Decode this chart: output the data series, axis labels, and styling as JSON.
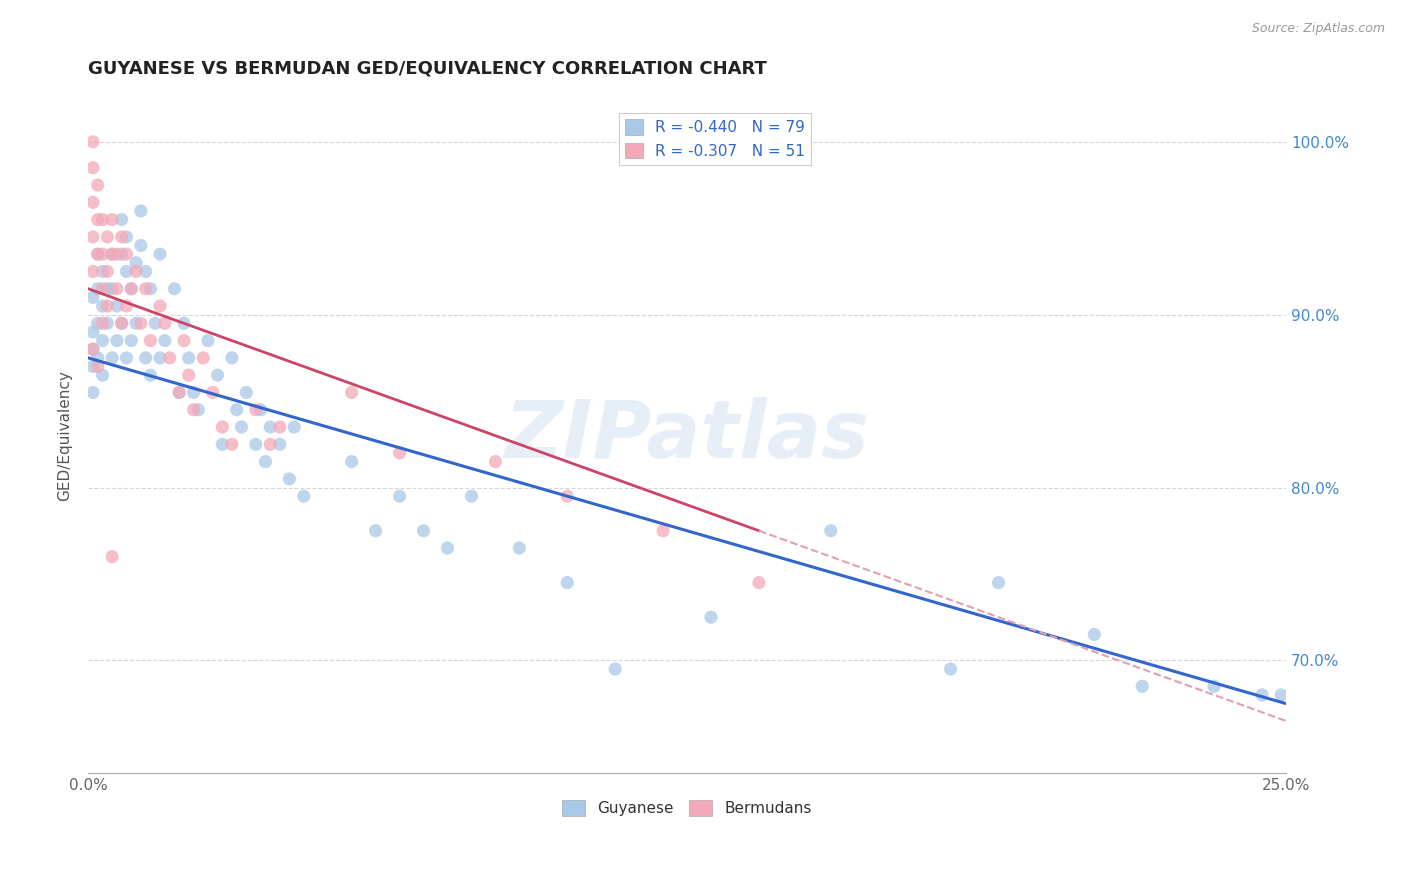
{
  "title": "GUYANESE VS BERMUDAN GED/EQUIVALENCY CORRELATION CHART",
  "source": "Source: ZipAtlas.com",
  "ylabel": "GED/Equivalency",
  "watermark": "ZIPatlas",
  "blue_color": "#a8c8e8",
  "pink_color": "#f4a8b8",
  "blue_line_color": "#3366cc",
  "pink_line_color": "#cc4466",
  "pink_dash_color": "#e0a0b0",
  "xlim": [
    0.0,
    0.25
  ],
  "ylim": [
    0.635,
    1.025
  ],
  "ytick_vals": [
    0.7,
    0.8,
    0.9,
    1.0
  ],
  "ytick_labels": [
    "70.0%",
    "80.0%",
    "90.0%",
    "100.0%"
  ],
  "blue_line_x0": 0.0,
  "blue_line_y0": 0.875,
  "blue_line_x1": 0.25,
  "blue_line_y1": 0.675,
  "pink_line_x0": 0.0,
  "pink_line_y0": 0.915,
  "pink_line_x1": 0.14,
  "pink_line_y1": 0.775,
  "guyanese_x": [
    0.001,
    0.001,
    0.001,
    0.001,
    0.001,
    0.002,
    0.002,
    0.002,
    0.002,
    0.003,
    0.003,
    0.003,
    0.003,
    0.004,
    0.004,
    0.005,
    0.005,
    0.005,
    0.006,
    0.006,
    0.007,
    0.007,
    0.007,
    0.008,
    0.008,
    0.008,
    0.009,
    0.009,
    0.01,
    0.01,
    0.011,
    0.011,
    0.012,
    0.012,
    0.013,
    0.013,
    0.014,
    0.015,
    0.015,
    0.016,
    0.018,
    0.019,
    0.02,
    0.021,
    0.022,
    0.023,
    0.025,
    0.027,
    0.028,
    0.03,
    0.031,
    0.032,
    0.033,
    0.035,
    0.036,
    0.037,
    0.038,
    0.04,
    0.042,
    0.043,
    0.045,
    0.055,
    0.06,
    0.065,
    0.07,
    0.075,
    0.08,
    0.09,
    0.1,
    0.11,
    0.13,
    0.155,
    0.18,
    0.19,
    0.21,
    0.22,
    0.235,
    0.245,
    0.249
  ],
  "guyanese_y": [
    0.91,
    0.89,
    0.88,
    0.87,
    0.855,
    0.935,
    0.915,
    0.895,
    0.875,
    0.925,
    0.905,
    0.885,
    0.865,
    0.915,
    0.895,
    0.935,
    0.915,
    0.875,
    0.905,
    0.885,
    0.955,
    0.935,
    0.895,
    0.945,
    0.925,
    0.875,
    0.915,
    0.885,
    0.93,
    0.895,
    0.96,
    0.94,
    0.925,
    0.875,
    0.915,
    0.865,
    0.895,
    0.935,
    0.875,
    0.885,
    0.915,
    0.855,
    0.895,
    0.875,
    0.855,
    0.845,
    0.885,
    0.865,
    0.825,
    0.875,
    0.845,
    0.835,
    0.855,
    0.825,
    0.845,
    0.815,
    0.835,
    0.825,
    0.805,
    0.835,
    0.795,
    0.815,
    0.775,
    0.795,
    0.775,
    0.765,
    0.795,
    0.765,
    0.745,
    0.695,
    0.725,
    0.775,
    0.695,
    0.745,
    0.715,
    0.685,
    0.685,
    0.68,
    0.68
  ],
  "bermudans_x": [
    0.001,
    0.001,
    0.001,
    0.001,
    0.001,
    0.002,
    0.002,
    0.002,
    0.003,
    0.003,
    0.003,
    0.003,
    0.004,
    0.004,
    0.004,
    0.005,
    0.005,
    0.006,
    0.006,
    0.007,
    0.007,
    0.008,
    0.008,
    0.009,
    0.01,
    0.011,
    0.012,
    0.013,
    0.015,
    0.016,
    0.017,
    0.019,
    0.02,
    0.021,
    0.022,
    0.024,
    0.026,
    0.028,
    0.03,
    0.035,
    0.038,
    0.04,
    0.055,
    0.065,
    0.085,
    0.1,
    0.12,
    0.14,
    0.001,
    0.002,
    0.005
  ],
  "bermudans_y": [
    1.0,
    0.985,
    0.965,
    0.945,
    0.925,
    0.975,
    0.955,
    0.935,
    0.955,
    0.935,
    0.915,
    0.895,
    0.945,
    0.925,
    0.905,
    0.955,
    0.935,
    0.935,
    0.915,
    0.945,
    0.895,
    0.935,
    0.905,
    0.915,
    0.925,
    0.895,
    0.915,
    0.885,
    0.905,
    0.895,
    0.875,
    0.855,
    0.885,
    0.865,
    0.845,
    0.875,
    0.855,
    0.835,
    0.825,
    0.845,
    0.825,
    0.835,
    0.855,
    0.82,
    0.815,
    0.795,
    0.775,
    0.745,
    0.88,
    0.87,
    0.76
  ]
}
